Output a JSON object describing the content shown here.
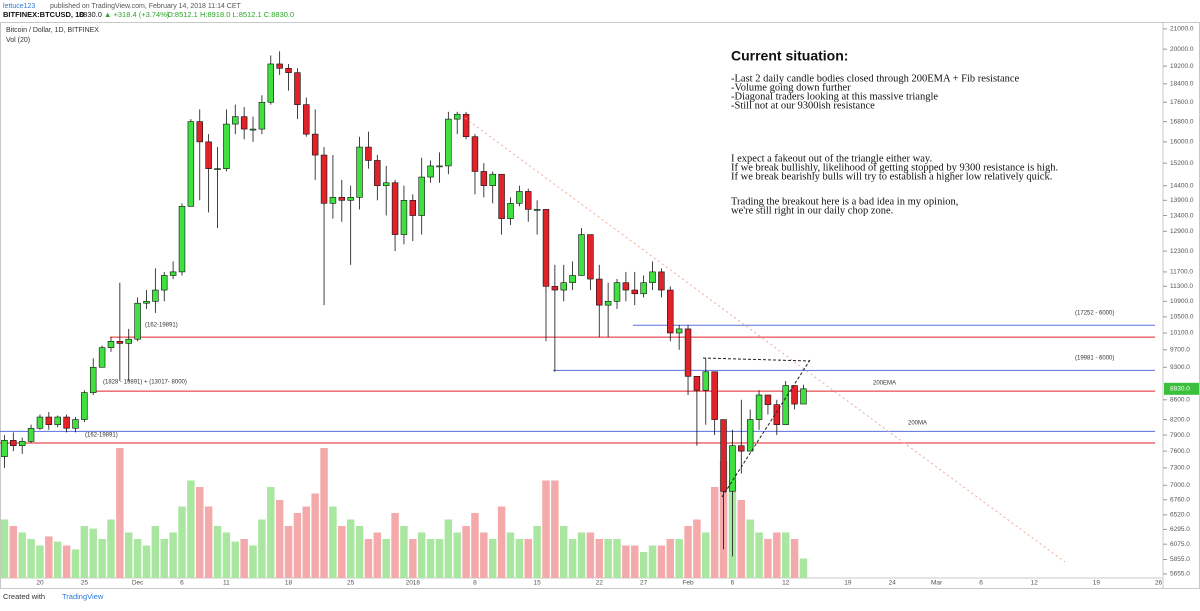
{
  "header": {
    "publisher": "lettuce123",
    "published": "published on TradingView.com, February 14, 2018 11:14 CET",
    "quote": [
      "BITFINEX:BTCUSD, 1D",
      "8830.0",
      "▲ +318.4 (+3.74%)",
      "O:8512.1 H:8918.0 L:8512.1 C:8830.0"
    ]
  },
  "footer": {
    "created": "Created with",
    "brand": "TradingView"
  },
  "chart_data": {
    "type": "candlestick",
    "title": "Bitcoin / Dollar, 1D, BITFINEX",
    "volume_title": "Vol (20)",
    "log_scale": true,
    "grid": false,
    "up_color": "#3fe03f",
    "down_color": "#e0222a",
    "volume_up_color": "#a9e6a0",
    "volume_down_color": "#f4a9ab",
    "last_price_label": "8830.0",
    "categories": [
      null,
      null,
      null,
      null,
      "20",
      null,
      null,
      null,
      null,
      "25",
      null,
      null,
      null,
      null,
      null,
      "Dec",
      null,
      null,
      null,
      null,
      "6",
      null,
      null,
      null,
      null,
      "11",
      null,
      null,
      null,
      null,
      null,
      null,
      "18",
      null,
      null,
      null,
      null,
      null,
      null,
      "25",
      null,
      null,
      null,
      null,
      null,
      null,
      "2018",
      null,
      null,
      null,
      null,
      null,
      null,
      "8",
      null,
      null,
      null,
      null,
      null,
      null,
      "15",
      null,
      null,
      null,
      null,
      null,
      null,
      "22",
      null,
      null,
      null,
      null,
      "27",
      null,
      null,
      null,
      null,
      "Feb",
      null,
      null,
      null,
      null,
      "6",
      null,
      null,
      null,
      null,
      null,
      "12",
      null,
      null,
      null,
      null,
      null,
      null,
      "19",
      null,
      null,
      null,
      null,
      "24",
      null,
      null,
      null,
      null,
      "Mar",
      null,
      null,
      null,
      null,
      "6",
      null,
      null,
      null,
      null,
      null,
      "12",
      null,
      null,
      null,
      null,
      null,
      null,
      "19",
      null,
      null,
      null,
      null,
      null,
      null,
      "26"
    ],
    "open": [
      7500,
      7800,
      7700,
      7780,
      8030,
      8250,
      8100,
      8250,
      8030,
      8200,
      8750,
      9300,
      9750,
      9900,
      9850,
      9950,
      10850,
      10900,
      11200,
      11600,
      11700,
      13700,
      16800,
      16000,
      15000,
      15000,
      16700,
      17000,
      16500,
      16500,
      17600,
      19300,
      19100,
      18900,
      17500,
      16300,
      15500,
      13800,
      14000,
      13900,
      14000,
      15800,
      15300,
      14400,
      14500,
      12800,
      13900,
      13400,
      14700,
      15100,
      15100,
      16900,
      17100,
      16200,
      14900,
      14400,
      14800,
      13300,
      13800,
      14200,
      13600,
      13600,
      11300,
      11200,
      11400,
      11600,
      12800,
      11500,
      10800,
      10900,
      11400,
      11200,
      11100,
      11400,
      11700,
      11200,
      10100,
      10200,
      9100,
      8800,
      9200,
      8200,
      6900,
      7700,
      7600,
      8200,
      8700,
      8500,
      8100,
      8900,
      8512.1,
      null,
      null,
      null,
      null,
      null,
      null,
      null,
      null,
      null,
      null,
      null,
      null,
      null,
      null,
      null,
      null,
      null,
      null,
      null,
      null,
      null,
      null,
      null,
      null,
      null,
      null,
      null,
      null,
      null,
      null,
      null,
      null,
      null,
      null,
      null,
      null,
      null,
      null,
      null,
      null
    ],
    "high": [
      7900,
      7950,
      7850,
      8100,
      8300,
      8350,
      8280,
      8300,
      8250,
      8800,
      9500,
      9800,
      10000,
      11400,
      10200,
      11000,
      11200,
      11800,
      11700,
      12000,
      13800,
      16900,
      17300,
      16300,
      15800,
      17300,
      17500,
      17400,
      17000,
      17900,
      19700,
      19900,
      19300,
      19100,
      17800,
      17300,
      15800,
      15500,
      14600,
      14400,
      16200,
      16400,
      15500,
      15100,
      14600,
      14400,
      14100,
      15400,
      15300,
      15600,
      17200,
      17200,
      17200,
      16300,
      15200,
      14900,
      14800,
      14000,
      14400,
      14300,
      13900,
      13600,
      11900,
      11900,
      12000,
      13000,
      12800,
      11900,
      11400,
      11500,
      11700,
      11700,
      11600,
      12000,
      11800,
      11300,
      10300,
      10300,
      9100,
      9500,
      9200,
      8200,
      8000,
      8600,
      8400,
      8800,
      8700,
      8600,
      9000,
      8900,
      8918,
      null,
      null,
      null,
      null,
      null,
      null,
      null,
      null,
      null,
      null,
      null,
      null,
      null,
      null,
      null,
      null,
      null,
      null,
      null,
      null,
      null,
      null,
      null,
      null,
      null,
      null,
      null,
      null,
      null,
      null,
      null,
      null,
      null,
      null,
      null,
      null,
      null,
      null,
      null,
      null
    ],
    "low": [
      7300,
      7600,
      7550,
      7750,
      8000,
      8000,
      8050,
      7950,
      7950,
      8150,
      8700,
      9300,
      9650,
      9000,
      9000,
      9900,
      10700,
      10600,
      10900,
      11500,
      11600,
      13700,
      13900,
      13500,
      13000,
      14900,
      16300,
      16100,
      16000,
      16300,
      17500,
      18800,
      18100,
      16900,
      16200,
      14600,
      10800,
      13300,
      13200,
      11900,
      13600,
      15000,
      13900,
      13400,
      12300,
      12500,
      12600,
      12800,
      14500,
      14500,
      14800,
      16300,
      16100,
      14100,
      14000,
      13800,
      12800,
      13100,
      13700,
      13200,
      12800,
      9900,
      9200,
      10900,
      11200,
      11600,
      11200,
      10000,
      10000,
      10700,
      10900,
      10800,
      11000,
      11200,
      11000,
      9900,
      9700,
      8700,
      7700,
      8100,
      7900,
      6000,
      5900,
      7200,
      7600,
      8000,
      8300,
      7900,
      8100,
      8400,
      8512.1,
      null,
      null,
      null,
      null,
      null,
      null,
      null,
      null,
      null,
      null,
      null,
      null,
      null,
      null,
      null,
      null,
      null,
      null,
      null,
      null,
      null,
      null,
      null,
      null,
      null,
      null,
      null,
      null,
      null,
      null,
      null,
      null,
      null,
      null,
      null,
      null,
      null,
      null,
      null,
      null
    ],
    "close": [
      7800,
      7700,
      7780,
      8030,
      8250,
      8100,
      8250,
      8030,
      8200,
      8750,
      9300,
      9750,
      9900,
      9850,
      9950,
      10850,
      10900,
      11200,
      11600,
      11700,
      13700,
      16800,
      16000,
      15000,
      15000,
      16700,
      17000,
      16500,
      16500,
      17600,
      19300,
      19100,
      18900,
      17500,
      16300,
      15500,
      13800,
      14000,
      13900,
      14000,
      15800,
      15300,
      14400,
      14500,
      12800,
      13900,
      13400,
      14700,
      15100,
      15100,
      16900,
      17100,
      16200,
      14900,
      14400,
      14800,
      13300,
      13800,
      14200,
      13600,
      13600,
      11300,
      11200,
      11400,
      11600,
      12800,
      11500,
      10800,
      10900,
      11400,
      11200,
      11100,
      11400,
      11700,
      11200,
      10100,
      10200,
      9100,
      8800,
      9200,
      8200,
      6900,
      7700,
      7600,
      8200,
      8700,
      8500,
      8100,
      8900,
      8511.6,
      8830,
      null,
      null,
      null,
      null,
      null,
      null,
      null,
      null,
      null,
      null,
      null,
      null,
      null,
      null,
      null,
      null,
      null,
      null,
      null,
      null,
      null,
      null,
      null,
      null,
      null,
      null,
      null,
      null,
      null,
      null,
      null,
      null,
      null,
      null,
      null,
      null,
      null,
      null,
      null,
      null
    ],
    "volume": [
      45,
      40,
      35,
      30,
      25,
      32,
      28,
      25,
      22,
      40,
      38,
      30,
      45,
      100,
      35,
      30,
      25,
      40,
      30,
      35,
      55,
      75,
      70,
      55,
      40,
      35,
      28,
      30,
      25,
      45,
      70,
      60,
      40,
      50,
      55,
      65,
      100,
      55,
      40,
      45,
      40,
      30,
      35,
      30,
      50,
      40,
      30,
      35,
      30,
      30,
      45,
      35,
      40,
      50,
      35,
      30,
      55,
      35,
      30,
      30,
      40,
      75,
      75,
      40,
      30,
      35,
      35,
      30,
      30,
      30,
      25,
      25,
      20,
      25,
      25,
      30,
      30,
      40,
      45,
      35,
      70,
      90,
      75,
      60,
      45,
      35,
      30,
      35,
      35,
      30,
      15,
      null,
      null,
      null,
      null,
      null,
      null,
      null,
      null,
      null,
      null,
      null,
      null,
      null,
      null,
      null,
      null,
      null,
      null,
      null,
      null,
      null,
      null,
      null,
      null,
      null,
      null,
      null,
      null,
      null,
      null,
      null,
      null,
      null,
      null,
      null,
      null,
      null,
      null,
      null,
      null
    ],
    "volume_lim": [
      0,
      100
    ],
    "ylim": [
      5600,
      21300
    ],
    "yticks": [
      {
        "value": 21000,
        "label": "21000.0"
      },
      {
        "value": 20000,
        "label": "20000.0"
      },
      {
        "value": 19200,
        "label": "19200.0"
      },
      {
        "value": 18400,
        "label": "18400.0"
      },
      {
        "value": 17600,
        "label": "17600.0"
      },
      {
        "value": 16800,
        "label": "16800.0"
      },
      {
        "value": 16000,
        "label": "16000.0"
      },
      {
        "value": 15200,
        "label": "15200.0"
      },
      {
        "value": 14400,
        "label": "14400.0"
      },
      {
        "value": 13900,
        "label": "13900.0"
      },
      {
        "value": 13400,
        "label": "13400.0"
      },
      {
        "value": 12900,
        "label": "12900.0"
      },
      {
        "value": 12300,
        "label": "12300.0"
      },
      {
        "value": 11700,
        "label": "11700.0"
      },
      {
        "value": 11300,
        "label": "11300.0"
      },
      {
        "value": 10900,
        "label": "10900.0"
      },
      {
        "value": 10500,
        "label": "10500.0"
      },
      {
        "value": 10100,
        "label": "10100.0"
      },
      {
        "value": 9700,
        "label": "9700.0"
      },
      {
        "value": 9300,
        "label": "9300.0"
      },
      {
        "value": 8600,
        "label": "8600.0"
      },
      {
        "value": 8200,
        "label": "8200.0"
      },
      {
        "value": 7900,
        "label": "7900.0"
      },
      {
        "value": 7600,
        "label": "7600.0"
      },
      {
        "value": 7300,
        "label": "7300.0"
      },
      {
        "value": 7000,
        "label": "7000.0"
      },
      {
        "value": 6760,
        "label": "6760.0"
      },
      {
        "value": 6520,
        "label": "6520.0"
      },
      {
        "value": 6295,
        "label": "6295.0"
      },
      {
        "value": 6075,
        "label": "6075.0"
      },
      {
        "value": 5855,
        "label": "5855.0"
      },
      {
        "value": 5655,
        "label": "5655.0"
      }
    ],
    "levels": [
      {
        "value": 10000,
        "color": "#e0222a"
      },
      {
        "value": 8780,
        "color": "#e0222a"
      },
      {
        "value": 7750,
        "color": "#e0222a"
      },
      {
        "value": 10290,
        "color": "#5b6fe0"
      },
      {
        "value": 9230,
        "color": "#5b6fe0"
      },
      {
        "value": 7970,
        "color": "#5b6fe0"
      }
    ],
    "level_labels": [
      "(162-19891)",
      "(1828 - 19891) + (13017- 8000)",
      "(162-19891)",
      "(17252 - 6000)",
      "(19981 - 6000)",
      "200EMA",
      "200MA"
    ],
    "notes": {
      "title": "Current situation:",
      "lines": [
        "-Last 2 daily candle bodies closed through 200EMA + Fib resistance",
        "-Volume going down further",
        "-Diagonal traders looking at this massive triangle",
        "-Still not at our 9300ish resistance",
        "I expect a fakeout out of the triangle either way.",
        "If we break bullishly, likelihood of getting stopped by 9300 resistance is high.",
        "If we break bearishly bulls will try to establish a higher low relatively quick.",
        "Trading the breakout here is a bad idea in my opinion,",
        "we're still right in our daily chop zone."
      ]
    }
  }
}
